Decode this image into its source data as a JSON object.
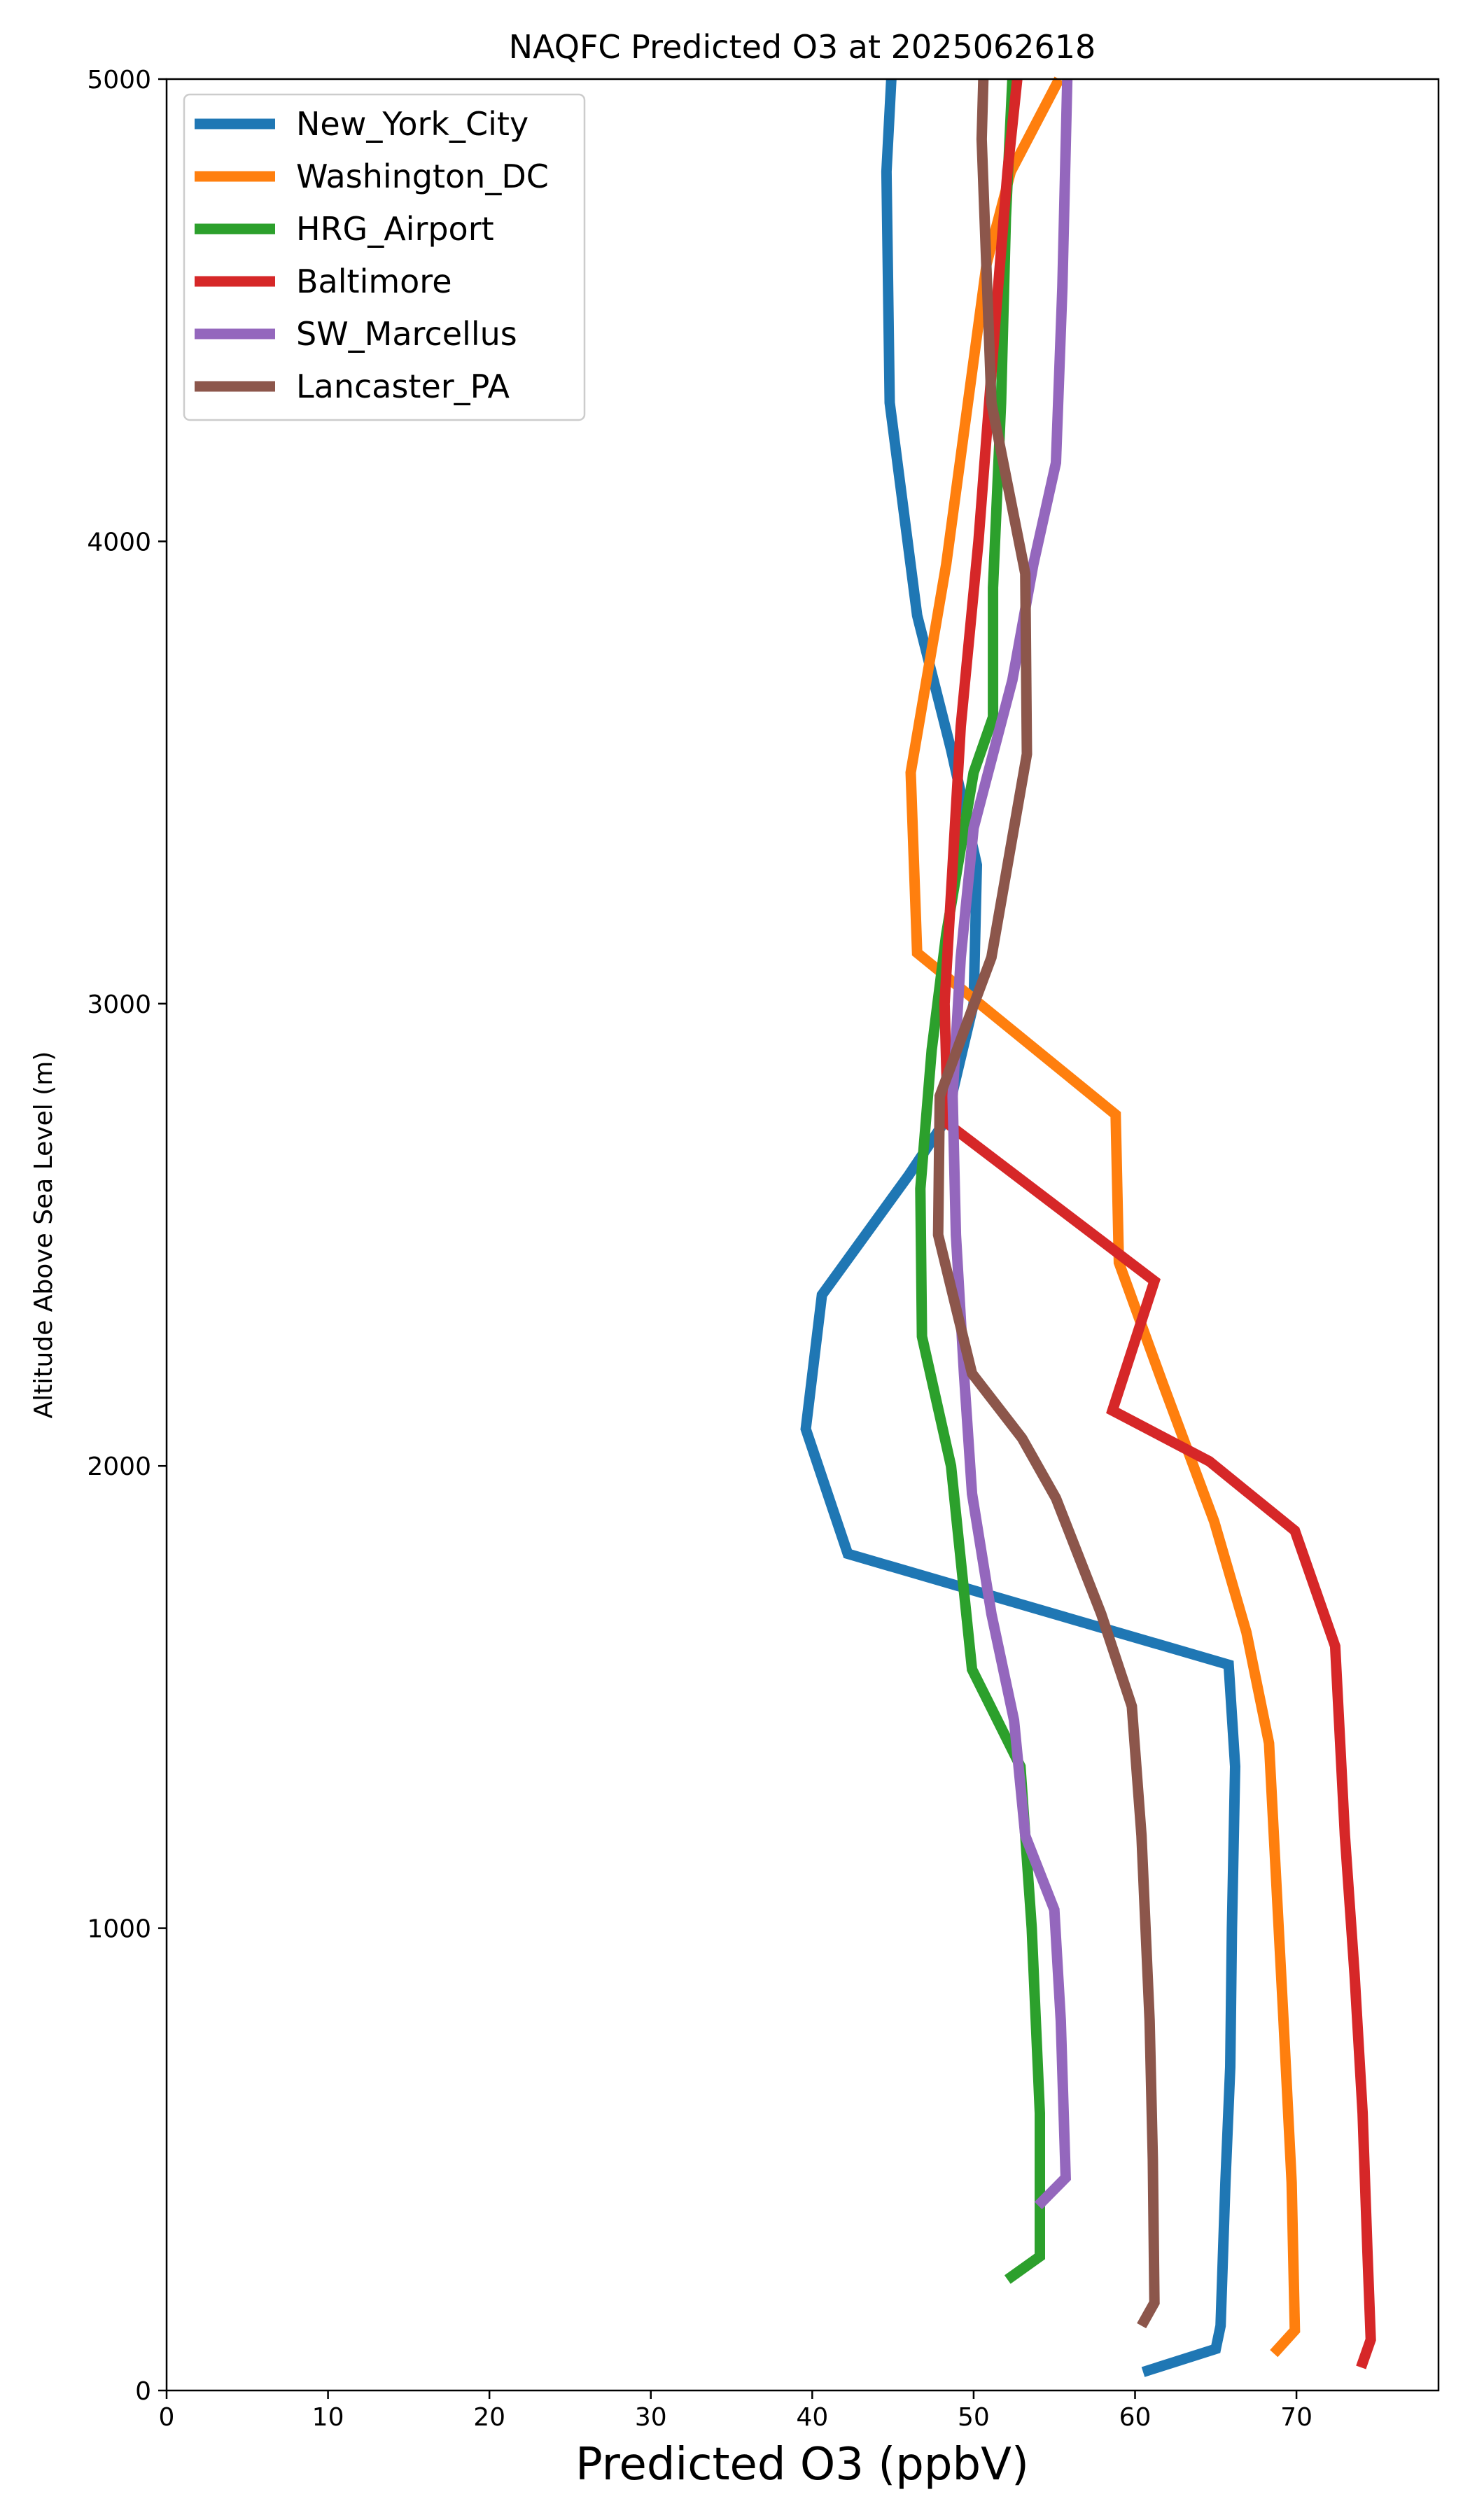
{
  "chart_data": {
    "type": "line",
    "title": "NAQFC Predicted O3 at 2025062618",
    "xlabel": "Predicted O3 (ppbV)",
    "ylabel": "Altitude Above Sea Level (m)",
    "xlim": [
      0,
      78.8
    ],
    "ylim": [
      0,
      5000
    ],
    "xticks": [
      0,
      10,
      20,
      30,
      40,
      50,
      60,
      70
    ],
    "yticks": [
      0,
      1000,
      2000,
      3000,
      4000,
      5000
    ],
    "grid": false,
    "legend_position": "top-left",
    "series": [
      {
        "name": "New_York_City",
        "color": "#1f77b4",
        "points": [
          [
            60.5,
            40
          ],
          [
            65,
            90
          ],
          [
            65.3,
            140
          ],
          [
            65.6,
            450
          ],
          [
            65.9,
            700
          ],
          [
            66,
            1000
          ],
          [
            66.2,
            1350
          ],
          [
            65.8,
            1570
          ],
          [
            53,
            1700
          ],
          [
            42.2,
            1810
          ],
          [
            39.6,
            2080
          ],
          [
            40.6,
            2370
          ],
          [
            46,
            2630
          ],
          [
            48.3,
            2750
          ],
          [
            50,
            3000
          ],
          [
            50.2,
            3300
          ],
          [
            48.6,
            3550
          ],
          [
            46.5,
            3840
          ],
          [
            44.8,
            4300
          ],
          [
            44.6,
            4800
          ],
          [
            44.9,
            5000
          ]
        ]
      },
      {
        "name": "Washington_DC",
        "color": "#ff7f0e",
        "points": [
          [
            68.6,
            80
          ],
          [
            69.9,
            130
          ],
          [
            69.7,
            450
          ],
          [
            69.2,
            800
          ],
          [
            68.3,
            1400
          ],
          [
            66.9,
            1640
          ],
          [
            64.9,
            1880
          ],
          [
            61.7,
            2180
          ],
          [
            59,
            2440
          ],
          [
            58.8,
            2760
          ],
          [
            46.5,
            3110
          ],
          [
            46.1,
            3500
          ],
          [
            48.3,
            3950
          ],
          [
            50.8,
            4600
          ],
          [
            52.3,
            4800
          ],
          [
            55.3,
            5000
          ]
        ]
      },
      {
        "name": "HRG_Airport",
        "color": "#2ca02c",
        "points": [
          [
            52.1,
            240
          ],
          [
            54.1,
            290
          ],
          [
            54.1,
            600
          ],
          [
            53.6,
            1000
          ],
          [
            52.9,
            1350
          ],
          [
            49.9,
            1560
          ],
          [
            48.6,
            2000
          ],
          [
            46.8,
            2280
          ],
          [
            46.7,
            2600
          ],
          [
            47.4,
            2900
          ],
          [
            48.3,
            3150
          ],
          [
            50,
            3500
          ],
          [
            51.2,
            3620
          ],
          [
            51.2,
            3900
          ],
          [
            51.7,
            4300
          ],
          [
            52,
            4700
          ],
          [
            52.4,
            5000
          ]
        ]
      },
      {
        "name": "Baltimore",
        "color": "#d62728",
        "points": [
          [
            74,
            50
          ],
          [
            74.6,
            110
          ],
          [
            74.4,
            300
          ],
          [
            74.1,
            600
          ],
          [
            73.6,
            900
          ],
          [
            73,
            1200
          ],
          [
            72.4,
            1610
          ],
          [
            69.9,
            1860
          ],
          [
            64.6,
            2010
          ],
          [
            58.6,
            2120
          ],
          [
            61.2,
            2400
          ],
          [
            48.4,
            2740
          ],
          [
            48.2,
            3000
          ],
          [
            49.2,
            3600
          ],
          [
            50.3,
            4000
          ],
          [
            51.4,
            4500
          ],
          [
            52.1,
            4800
          ],
          [
            52.7,
            5000
          ]
        ]
      },
      {
        "name": "SW_Marcellus",
        "color": "#9467bd",
        "points": [
          [
            54,
            400
          ],
          [
            55.7,
            460
          ],
          [
            55.4,
            800
          ],
          [
            55,
            1040
          ],
          [
            53.2,
            1200
          ],
          [
            52.5,
            1450
          ],
          [
            51.1,
            1680
          ],
          [
            49.9,
            1940
          ],
          [
            49.4,
            2200
          ],
          [
            48.9,
            2500
          ],
          [
            48.7,
            2800
          ],
          [
            49.2,
            3100
          ],
          [
            50,
            3380
          ],
          [
            52.4,
            3700
          ],
          [
            53.7,
            3950
          ],
          [
            55.1,
            4170
          ],
          [
            55.5,
            4550
          ],
          [
            55.8,
            5000
          ]
        ]
      },
      {
        "name": "Lancaster_PA",
        "color": "#8c564b",
        "points": [
          [
            60.4,
            140
          ],
          [
            61.2,
            190
          ],
          [
            61.1,
            500
          ],
          [
            60.9,
            800
          ],
          [
            60.4,
            1200
          ],
          [
            59.8,
            1480
          ],
          [
            57.9,
            1680
          ],
          [
            55.1,
            1930
          ],
          [
            53,
            2060
          ],
          [
            49.9,
            2200
          ],
          [
            47.8,
            2500
          ],
          [
            47.9,
            2800
          ],
          [
            51.1,
            3100
          ],
          [
            53.3,
            3540
          ],
          [
            53.2,
            3930
          ],
          [
            51.1,
            4300
          ],
          [
            50.5,
            4870
          ],
          [
            50.6,
            5000
          ]
        ]
      }
    ]
  }
}
